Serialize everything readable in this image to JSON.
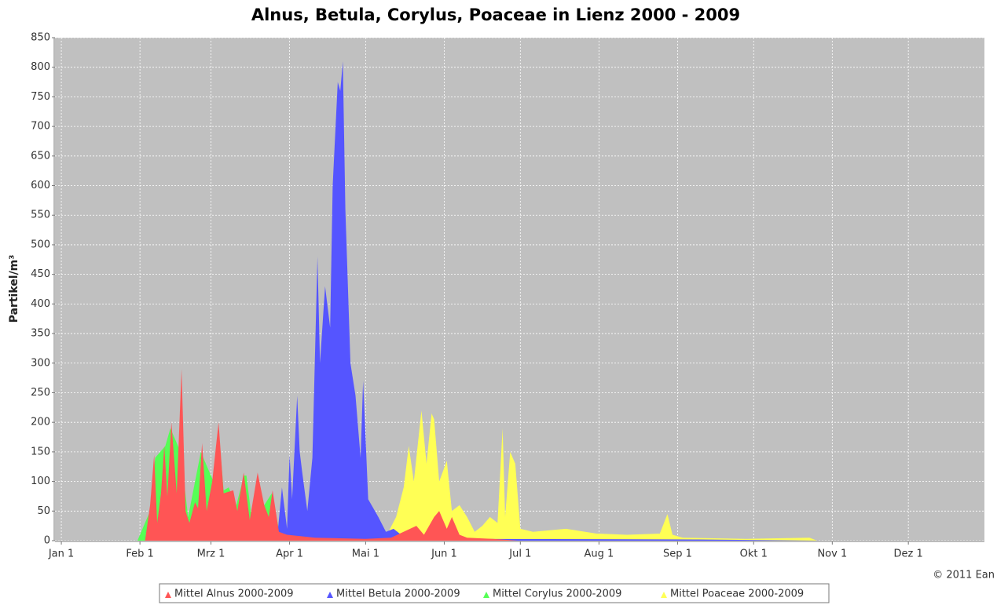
{
  "chart_data": {
    "type": "area",
    "title": "Alnus, Betula, Corylus, Poaceae in Lienz 2000 - 2009",
    "y_label": "Partikel/m³",
    "credit": "© 2011 Ean",
    "xlim": [
      -2.5,
      364
    ],
    "xticks": [
      {
        "value": 0,
        "label": "Jan 1"
      },
      {
        "value": 31,
        "label": "Feb 1"
      },
      {
        "value": 59,
        "label": "Mrz 1"
      },
      {
        "value": 90,
        "label": "Apr 1"
      },
      {
        "value": 120,
        "label": "Mai 1"
      },
      {
        "value": 151,
        "label": "Jun 1"
      },
      {
        "value": 181,
        "label": "Jul 1"
      },
      {
        "value": 212,
        "label": "Aug 1"
      },
      {
        "value": 243,
        "label": "Sep 1"
      },
      {
        "value": 273,
        "label": "Okt 1"
      },
      {
        "value": 304,
        "label": "Nov 1"
      },
      {
        "value": 334,
        "label": "Dez 1"
      }
    ],
    "ylim": [
      0,
      850
    ],
    "yticks": [
      0,
      50,
      100,
      150,
      200,
      250,
      300,
      350,
      400,
      450,
      500,
      550,
      600,
      650,
      700,
      750,
      800,
      850
    ],
    "grid": true,
    "legend": "bottom",
    "series": [
      {
        "name": "Mittel Alnus 2000-2009",
        "color": "#ff5555",
        "x": [
          30,
          33,
          35,
          36.6,
          37.8,
          39.3,
          40.6,
          41.8,
          43.4,
          45.5,
          47.4,
          49,
          50.5,
          52.7,
          53.9,
          55.5,
          57.3,
          59.5,
          62,
          64,
          67.8,
          69.4,
          71.9,
          74.3,
          77.4,
          80,
          81.8,
          83.3,
          85.8,
          89,
          100,
          120,
          130,
          140,
          143,
          147,
          149,
          152,
          154,
          157,
          160,
          170,
          180
        ],
        "values": [
          0,
          0,
          60,
          145,
          30,
          80,
          160,
          75,
          200,
          80,
          290,
          50,
          30,
          65,
          55,
          165,
          50,
          100,
          200,
          80,
          85,
          50,
          115,
          35,
          115,
          60,
          40,
          85,
          15,
          10,
          5,
          3,
          5,
          25,
          10,
          40,
          50,
          20,
          40,
          10,
          5,
          3,
          0
        ]
      },
      {
        "name": "Mittel Betula 2000-2009",
        "color": "#5555ff",
        "x": [
          85,
          87,
          89,
          90,
          91,
          93,
          94,
          95,
          97,
          99,
          101,
          102,
          104,
          106,
          107,
          109,
          110,
          111,
          112,
          114,
          116,
          118,
          119,
          121,
          123,
          125,
          128,
          131,
          134,
          139,
          160,
          250,
          300
        ],
        "values": [
          0,
          90,
          20,
          145,
          70,
          245,
          150,
          115,
          50,
          140,
          480,
          300,
          430,
          360,
          600,
          775,
          760,
          810,
          560,
          300,
          245,
          140,
          270,
          70,
          55,
          40,
          15,
          20,
          10,
          5,
          3,
          2,
          0
        ]
      },
      {
        "name": "Mittel Corylus 2000-2009",
        "color": "#55ff55",
        "x": [
          30,
          35,
          37,
          41,
          43,
          45,
          47,
          50,
          55,
          60,
          62,
          64,
          66,
          69,
          72,
          73,
          75,
          77,
          80,
          83,
          86,
          90,
          100,
          130
        ],
        "values": [
          0,
          50,
          140,
          160,
          190,
          170,
          150,
          40,
          150,
          100,
          190,
          85,
          90,
          60,
          110,
          110,
          40,
          100,
          60,
          80,
          15,
          8,
          3,
          0
        ]
      },
      {
        "name": "Mittel Poaceae 2000-2009",
        "color": "#ffff55",
        "x": [
          125,
          129,
          132,
          135,
          137,
          139,
          142,
          144,
          146,
          147,
          149,
          152,
          154,
          157,
          160,
          163,
          166,
          169,
          172,
          174,
          175,
          177,
          179,
          181,
          186,
          199,
          211,
          223,
          236,
          239,
          241,
          245,
          270,
          295,
          298
        ],
        "values": [
          0,
          15,
          40,
          90,
          160,
          100,
          220,
          130,
          215,
          205,
          100,
          135,
          50,
          60,
          40,
          15,
          25,
          40,
          30,
          190,
          40,
          150,
          130,
          20,
          15,
          20,
          12,
          10,
          12,
          45,
          10,
          5,
          3,
          5,
          0
        ]
      }
    ]
  }
}
